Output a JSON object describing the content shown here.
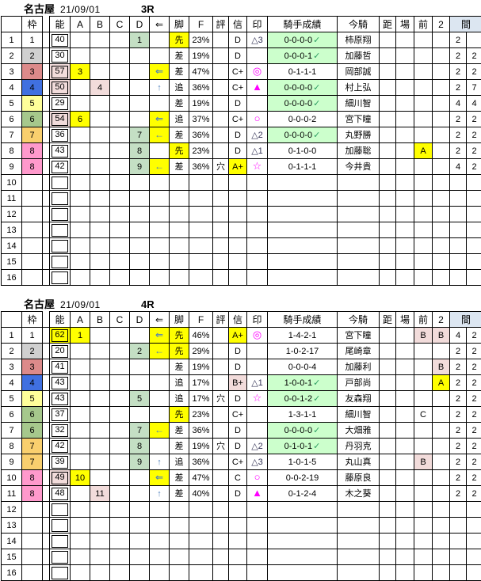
{
  "colors": {
    "yellow": "#ffff00",
    "pink": "#f2dcdb",
    "cell_green": "#c4dfc4",
    "record_green": "#ccffcc",
    "aida_header_blue": "#dce6f1",
    "mark_magenta": "#ff00ff",
    "mark_navy": "#333355",
    "arrow_blue": "#4f81bd",
    "check_green": "#2e9e63",
    "waku": {
      "1": "#ffffff",
      "2": "#d0d0d0",
      "3": "#dc8a8a",
      "4": "#4070e0",
      "5": "#ffff9a",
      "6": "#a6c88c",
      "7": "#f9cf6e",
      "8": "#ff99cc"
    }
  },
  "columns": {
    "num": "",
    "waku": "枠",
    "nou": "能",
    "a": "A",
    "b": "B",
    "c": "C",
    "d": "D",
    "arrow": "⇐",
    "kyaku": "脚",
    "f": "F",
    "hyo": "評",
    "shin": "信",
    "mark": "印",
    "kishu": "騎手成績",
    "ima": "今騎",
    "kyo": "距",
    "ba": "場",
    "mae": "前",
    "two": "2",
    "aida": "間"
  },
  "tables": [
    {
      "track": "名古屋",
      "date": "21/09/01",
      "race": "3R",
      "rows": [
        {
          "num": "1",
          "waku": "1",
          "nou": "40",
          "nou_hl": "",
          "a": "",
          "b": "",
          "c": "",
          "d": "1",
          "arrow": "",
          "kyaku": "先",
          "f": "23%",
          "hyo": "",
          "shin": "D",
          "mark": "△3",
          "kishu": "0-0-0-0",
          "check": true,
          "ima": "柿原翔",
          "kyo": "",
          "ba": "",
          "mae": "",
          "two": "",
          "aida1": "2",
          "aida2": ""
        },
        {
          "num": "2",
          "waku": "2",
          "nou": "30",
          "nou_hl": "",
          "a": "",
          "b": "",
          "c": "",
          "d": "",
          "arrow": "",
          "kyaku": "差",
          "f": "19%",
          "hyo": "",
          "shin": "D",
          "mark": "",
          "kishu": "0-0-0-1",
          "check": true,
          "ima": "加藤哲",
          "kyo": "",
          "ba": "",
          "mae": "",
          "two": "",
          "aida1": "2",
          "aida2": "2"
        },
        {
          "num": "3",
          "waku": "3",
          "nou": "57",
          "nou_hl": "P",
          "a": "3",
          "b": "",
          "c": "",
          "d": "",
          "arrow": "⇐",
          "kyaku": "差",
          "f": "47%",
          "hyo": "",
          "shin": "C+",
          "mark": "◎",
          "kishu": "0-1-1-1",
          "check": false,
          "ima": "岡部誠",
          "kyo": "",
          "ba": "",
          "mae": "",
          "two": "",
          "aida1": "2",
          "aida2": "2"
        },
        {
          "num": "4",
          "waku": "4",
          "nou": "50",
          "nou_hl": "P",
          "a": "",
          "b": "4",
          "c": "",
          "d": "",
          "arrow": "↑",
          "kyaku": "追",
          "f": "36%",
          "hyo": "",
          "shin": "C+",
          "mark": "▲",
          "kishu": "0-0-0-0",
          "check": true,
          "ima": "村上弘",
          "kyo": "",
          "ba": "",
          "mae": "",
          "two": "",
          "aida1": "2",
          "aida2": "7"
        },
        {
          "num": "5",
          "waku": "5",
          "nou": "29",
          "nou_hl": "",
          "a": "",
          "b": "",
          "c": "",
          "d": "",
          "arrow": "",
          "kyaku": "差",
          "f": "19%",
          "hyo": "",
          "shin": "D",
          "mark": "",
          "kishu": "0-0-0-0",
          "check": true,
          "ima": "細川智",
          "kyo": "",
          "ba": "",
          "mae": "",
          "two": "",
          "aida1": "4",
          "aida2": "4"
        },
        {
          "num": "6",
          "waku": "6",
          "nou": "54",
          "nou_hl": "P",
          "a": "6",
          "b": "",
          "c": "",
          "d": "",
          "arrow": "⇐",
          "kyaku": "追",
          "f": "37%",
          "hyo": "",
          "shin": "C+",
          "mark": "○",
          "kishu": "0-0-0-2",
          "check": false,
          "ima": "宮下瞳",
          "kyo": "",
          "ba": "",
          "mae": "",
          "two": "",
          "aida1": "2",
          "aida2": "2"
        },
        {
          "num": "7",
          "waku": "7",
          "nou": "36",
          "nou_hl": "",
          "a": "",
          "b": "",
          "c": "",
          "d": "7",
          "arrow": "←",
          "kyaku": "差",
          "f": "36%",
          "hyo": "",
          "shin": "D",
          "mark": "△2",
          "kishu": "0-0-0-0",
          "check": true,
          "ima": "丸野勝",
          "kyo": "",
          "ba": "",
          "mae": "",
          "two": "",
          "aida1": "2",
          "aida2": "2"
        },
        {
          "num": "8",
          "waku": "8",
          "nou": "43",
          "nou_hl": "",
          "a": "",
          "b": "",
          "c": "",
          "d": "8",
          "arrow": "",
          "kyaku": "先",
          "f": "23%",
          "hyo": "",
          "shin": "D",
          "mark": "△1",
          "kishu": "0-1-0-0",
          "check": false,
          "ima": "加藤聡",
          "kyo": "",
          "ba": "",
          "mae": "A",
          "two": "",
          "aida1": "2",
          "aida2": "2"
        },
        {
          "num": "9",
          "waku": "8",
          "nou": "42",
          "nou_hl": "",
          "a": "",
          "b": "",
          "c": "",
          "d": "9",
          "arrow": "←",
          "kyaku": "差",
          "f": "36%",
          "hyo": "穴",
          "shin": "A+",
          "mark": "☆",
          "kishu": "0-1-1-1",
          "check": false,
          "ima": "今井貴",
          "kyo": "",
          "ba": "",
          "mae": "",
          "two": "",
          "aida1": "4",
          "aida2": "2"
        },
        {
          "num": "10"
        },
        {
          "num": "11"
        },
        {
          "num": "12"
        },
        {
          "num": "13"
        },
        {
          "num": "14"
        },
        {
          "num": "15"
        },
        {
          "num": "16"
        }
      ]
    },
    {
      "track": "名古屋",
      "date": "21/09/01",
      "race": "4R",
      "rows": [
        {
          "num": "1",
          "waku": "1",
          "nou": "62",
          "nou_hl": "Y",
          "a": "1",
          "b": "",
          "c": "",
          "d": "",
          "arrow": "⇐",
          "kyaku": "先",
          "f": "46%",
          "hyo": "",
          "shin": "A+",
          "mark": "◎",
          "kishu": "1-4-2-1",
          "check": false,
          "ima": "宮下瞳",
          "kyo": "",
          "ba": "",
          "mae": "B",
          "two": "B",
          "aida1": "4",
          "aida2": "2"
        },
        {
          "num": "2",
          "waku": "2",
          "nou": "20",
          "nou_hl": "",
          "a": "",
          "b": "",
          "c": "",
          "d": "2",
          "arrow": "←",
          "kyaku": "先",
          "f": "29%",
          "hyo": "",
          "shin": "D",
          "mark": "",
          "kishu": "1-0-2-17",
          "check": false,
          "ima": "尾崎章",
          "kyo": "",
          "ba": "",
          "mae": "",
          "two": "",
          "aida1": "2",
          "aida2": "2"
        },
        {
          "num": "3",
          "waku": "3",
          "nou": "41",
          "nou_hl": "",
          "a": "",
          "b": "",
          "c": "",
          "d": "",
          "arrow": "",
          "kyaku": "差",
          "f": "19%",
          "hyo": "",
          "shin": "D",
          "mark": "",
          "kishu": "0-0-0-4",
          "check": false,
          "ima": "加藤利",
          "kyo": "",
          "ba": "",
          "mae": "",
          "two": "B",
          "aida1": "2",
          "aida2": "2"
        },
        {
          "num": "4",
          "waku": "4",
          "nou": "43",
          "nou_hl": "",
          "a": "",
          "b": "",
          "c": "",
          "d": "",
          "arrow": "",
          "kyaku": "追",
          "f": "17%",
          "hyo": "",
          "shin": "B+",
          "mark": "△1",
          "kishu": "1-0-0-1",
          "check": true,
          "ima": "戸部尚",
          "kyo": "",
          "ba": "",
          "mae": "",
          "two": "A",
          "aida1": "2",
          "aida2": "2"
        },
        {
          "num": "5",
          "waku": "5",
          "nou": "43",
          "nou_hl": "",
          "a": "",
          "b": "",
          "c": "",
          "d": "5",
          "arrow": "",
          "kyaku": "追",
          "f": "17%",
          "hyo": "穴",
          "shin": "D",
          "mark": "☆",
          "kishu": "0-0-1-2",
          "check": true,
          "ima": "友森翔",
          "kyo": "",
          "ba": "",
          "mae": "",
          "two": "",
          "aida1": "2",
          "aida2": "2"
        },
        {
          "num": "6",
          "waku": "6",
          "nou": "37",
          "nou_hl": "",
          "a": "",
          "b": "",
          "c": "",
          "d": "",
          "arrow": "",
          "kyaku": "先",
          "f": "23%",
          "hyo": "",
          "shin": "C+",
          "mark": "",
          "kishu": "1-3-1-1",
          "check": false,
          "ima": "細川智",
          "kyo": "",
          "ba": "",
          "mae": "C",
          "two": "",
          "aida1": "2",
          "aida2": "2"
        },
        {
          "num": "7",
          "waku": "6",
          "nou": "32",
          "nou_hl": "",
          "a": "",
          "b": "",
          "c": "",
          "d": "7",
          "arrow": "←",
          "kyaku": "差",
          "f": "36%",
          "hyo": "",
          "shin": "D",
          "mark": "",
          "kishu": "0-0-0-0",
          "check": true,
          "ima": "大畑雅",
          "kyo": "",
          "ba": "",
          "mae": "",
          "two": "",
          "aida1": "2",
          "aida2": "2"
        },
        {
          "num": "8",
          "waku": "7",
          "nou": "42",
          "nou_hl": "",
          "a": "",
          "b": "",
          "c": "",
          "d": "8",
          "arrow": "",
          "kyaku": "差",
          "f": "19%",
          "hyo": "穴",
          "shin": "D",
          "mark": "△2",
          "kishu": "0-1-0-1",
          "check": true,
          "ima": "丹羽克",
          "kyo": "",
          "ba": "",
          "mae": "",
          "two": "",
          "aida1": "2",
          "aida2": "2"
        },
        {
          "num": "9",
          "waku": "7",
          "nou": "39",
          "nou_hl": "",
          "a": "",
          "b": "",
          "c": "",
          "d": "9",
          "arrow": "↑",
          "kyaku": "追",
          "f": "36%",
          "hyo": "",
          "shin": "C+",
          "mark": "△3",
          "kishu": "1-0-1-5",
          "check": false,
          "ima": "丸山真",
          "kyo": "",
          "ba": "",
          "mae": "B",
          "two": "",
          "aida1": "2",
          "aida2": "2"
        },
        {
          "num": "10",
          "waku": "8",
          "nou": "49",
          "nou_hl": "P",
          "a": "10",
          "b": "",
          "c": "",
          "d": "",
          "arrow": "⇐",
          "kyaku": "差",
          "f": "47%",
          "hyo": "",
          "shin": "C",
          "mark": "○",
          "kishu": "0-0-2-19",
          "check": false,
          "ima": "藤原良",
          "kyo": "",
          "ba": "",
          "mae": "",
          "two": "",
          "aida1": "2",
          "aida2": "2"
        },
        {
          "num": "11",
          "waku": "8",
          "nou": "48",
          "nou_hl": "",
          "a": "",
          "b": "11",
          "c": "",
          "d": "",
          "arrow": "↑",
          "kyaku": "差",
          "f": "40%",
          "hyo": "",
          "shin": "D",
          "mark": "▲",
          "kishu": "0-1-2-4",
          "check": false,
          "ima": "木之葵",
          "kyo": "",
          "ba": "",
          "mae": "",
          "two": "",
          "aida1": "2",
          "aida2": "2"
        },
        {
          "num": "12"
        },
        {
          "num": "13"
        },
        {
          "num": "14"
        },
        {
          "num": "15"
        },
        {
          "num": "16"
        }
      ]
    }
  ]
}
